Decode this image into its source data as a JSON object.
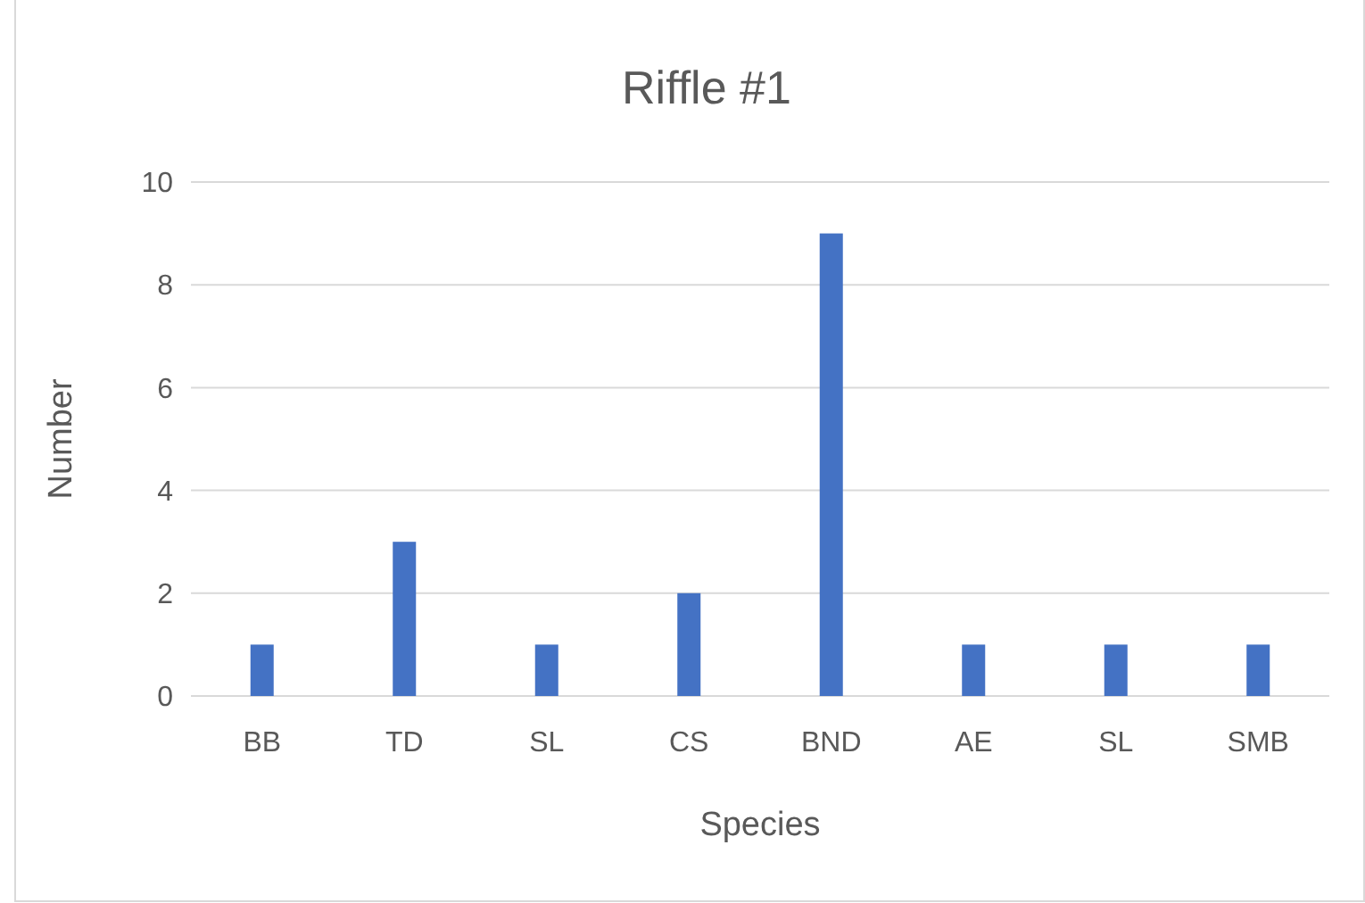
{
  "chart_data": {
    "type": "bar",
    "title": "Riffle #1",
    "xlabel": "Species",
    "ylabel": "Number",
    "categories": [
      "BB",
      "TD",
      "SL",
      "CS",
      "BND",
      "AE",
      "SL",
      "SMB"
    ],
    "values": [
      1,
      3,
      1,
      2,
      9,
      1,
      1,
      1
    ],
    "color": "#4472c4",
    "ylim": [
      0,
      10
    ],
    "yticks": [
      0,
      2,
      4,
      6,
      8,
      10
    ],
    "grid": "y"
  }
}
